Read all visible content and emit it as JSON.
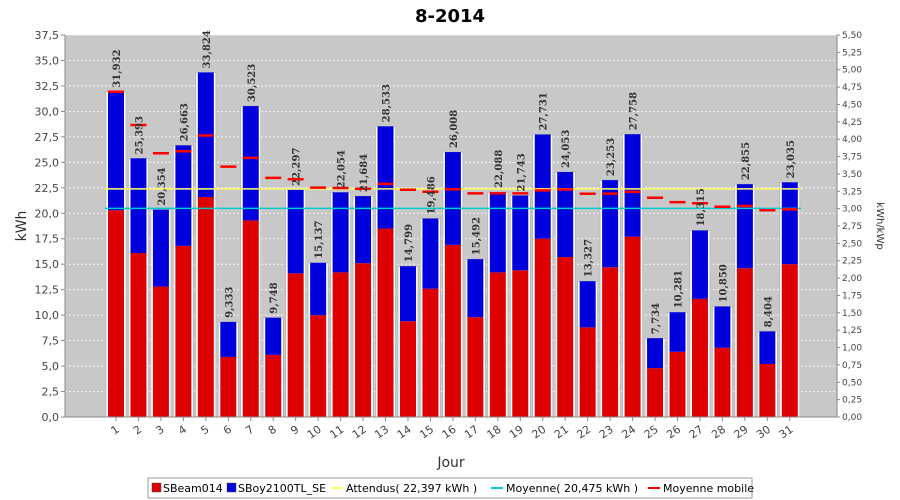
{
  "chart_data": {
    "type": "bar",
    "title": "8-2014",
    "xlabel": "Jour",
    "ylabel": "kWh",
    "y2label": "kWh/kWp",
    "ylim": [
      0,
      37.5
    ],
    "y2lim": [
      0,
      5.5
    ],
    "yticks": [
      "0,0",
      "2,5",
      "5,0",
      "7,5",
      "10,0",
      "12,5",
      "15,0",
      "17,5",
      "20,0",
      "22,5",
      "25,0",
      "27,5",
      "30,0",
      "32,5",
      "35,0",
      "37,5"
    ],
    "y2ticks": [
      "0,00",
      "0,25",
      "0,50",
      "0,75",
      "1,00",
      "1,25",
      "1,50",
      "1,75",
      "2,00",
      "2,25",
      "2,50",
      "2,75",
      "3,00",
      "3,25",
      "3,50",
      "3,75",
      "4,00",
      "4,25",
      "4,50",
      "4,75",
      "5,00",
      "5,25",
      "5,50"
    ],
    "categories": [
      "1",
      "2",
      "3",
      "4",
      "5",
      "6",
      "7",
      "8",
      "9",
      "10",
      "11",
      "12",
      "13",
      "14",
      "15",
      "16",
      "17",
      "18",
      "19",
      "20",
      "21",
      "22",
      "23",
      "24",
      "25",
      "26",
      "27",
      "28",
      "29",
      "30",
      "31"
    ],
    "series": [
      {
        "name": "SBeam014",
        "color": "#dd0000",
        "values": [
          20.3,
          16.1,
          12.8,
          16.8,
          21.6,
          5.9,
          19.3,
          6.1,
          14.1,
          10.0,
          14.2,
          15.1,
          18.5,
          9.4,
          12.6,
          16.9,
          9.8,
          14.2,
          14.4,
          17.5,
          15.7,
          8.8,
          14.7,
          17.7,
          4.8,
          6.4,
          11.6,
          6.8,
          14.6,
          5.2,
          15.0
        ]
      },
      {
        "name": "SBoy2100TL_SE",
        "color": "#0000dd",
        "values": [
          11.632,
          9.293,
          7.554,
          9.863,
          12.224,
          3.433,
          11.223,
          3.648,
          8.197,
          5.137,
          7.854,
          6.584,
          10.033,
          5.399,
          6.886,
          9.108,
          5.692,
          7.888,
          7.343,
          10.231,
          8.353,
          4.527,
          8.553,
          10.058,
          2.934,
          3.881,
          6.715,
          4.05,
          8.255,
          3.204,
          8.035
        ]
      }
    ],
    "totals": [
      "31,932",
      "25,393",
      "20,354",
      "26,663",
      "33,824",
      "9,333",
      "30,523",
      "9,748",
      "22,297",
      "15,137",
      "22,054",
      "21,684",
      "28,533",
      "14,799",
      "19,486",
      "26,008",
      "15,492",
      "22,088",
      "21,743",
      "27,731",
      "24,053",
      "13,327",
      "23,253",
      "27,758",
      "7,734",
      "10,281",
      "18,315",
      "10,850",
      "22,855",
      "8,404",
      "23,035"
    ],
    "expected": {
      "name": "Attendus( 22,397 kWh )",
      "value": 22.397,
      "color": "#ffff66"
    },
    "average": {
      "name": "Moyenne( 20,475 kWh )",
      "value": 20.475,
      "color": "#00cccc"
    },
    "moving_average": {
      "name": "Moyenne mobile",
      "color": "#ff0000",
      "values": [
        31.932,
        28.663,
        25.893,
        26.086,
        27.634,
        24.581,
        25.432,
        23.471,
        23.341,
        22.521,
        22.479,
        22.412,
        22.884,
        22.306,
        22.118,
        22.361,
        21.958,
        21.965,
        21.953,
        22.242,
        22.327,
        21.918,
        21.932,
        22.094,
        21.52,
        21.088,
        20.987,
        20.635,
        20.711,
        20.3,
        20.388
      ]
    },
    "legend_position": "bottom",
    "grid": true
  }
}
